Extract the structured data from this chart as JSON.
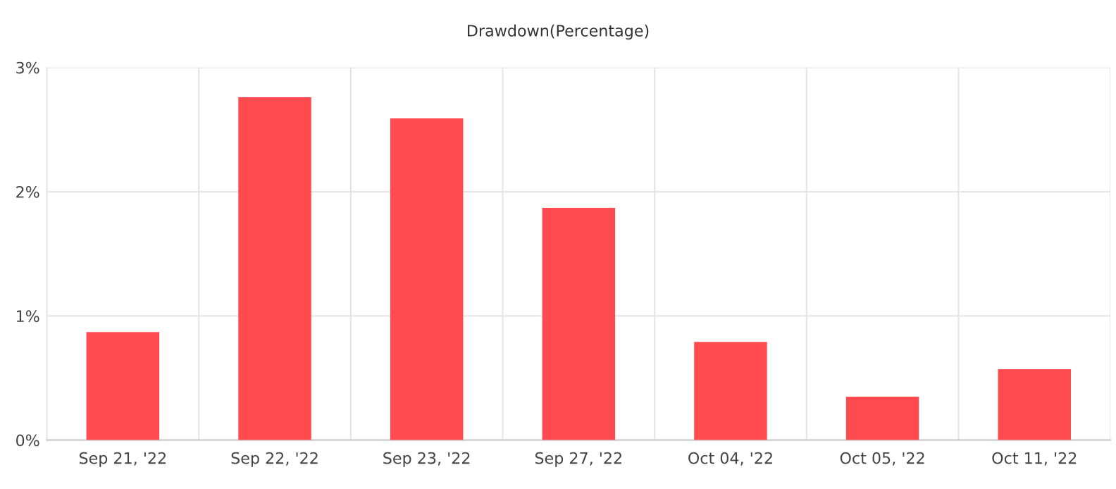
{
  "chart_data": {
    "type": "bar",
    "title": "Drawdown(Percentage)",
    "categories": [
      "Sep 21, '22",
      "Sep 22, '22",
      "Sep 23, '22",
      "Sep 27, '22",
      "Oct 04, '22",
      "Oct 05, '22",
      "Oct 11, '22"
    ],
    "values": [
      0.87,
      2.76,
      2.59,
      1.87,
      0.79,
      0.35,
      0.57
    ],
    "color": "#ff4b4f",
    "ylim": [
      0,
      3
    ],
    "yticks": [
      {
        "value": 0,
        "label": "0%"
      },
      {
        "value": 1,
        "label": "1%"
      },
      {
        "value": 2,
        "label": "2%"
      },
      {
        "value": 3,
        "label": "3%"
      }
    ],
    "grid": true
  }
}
